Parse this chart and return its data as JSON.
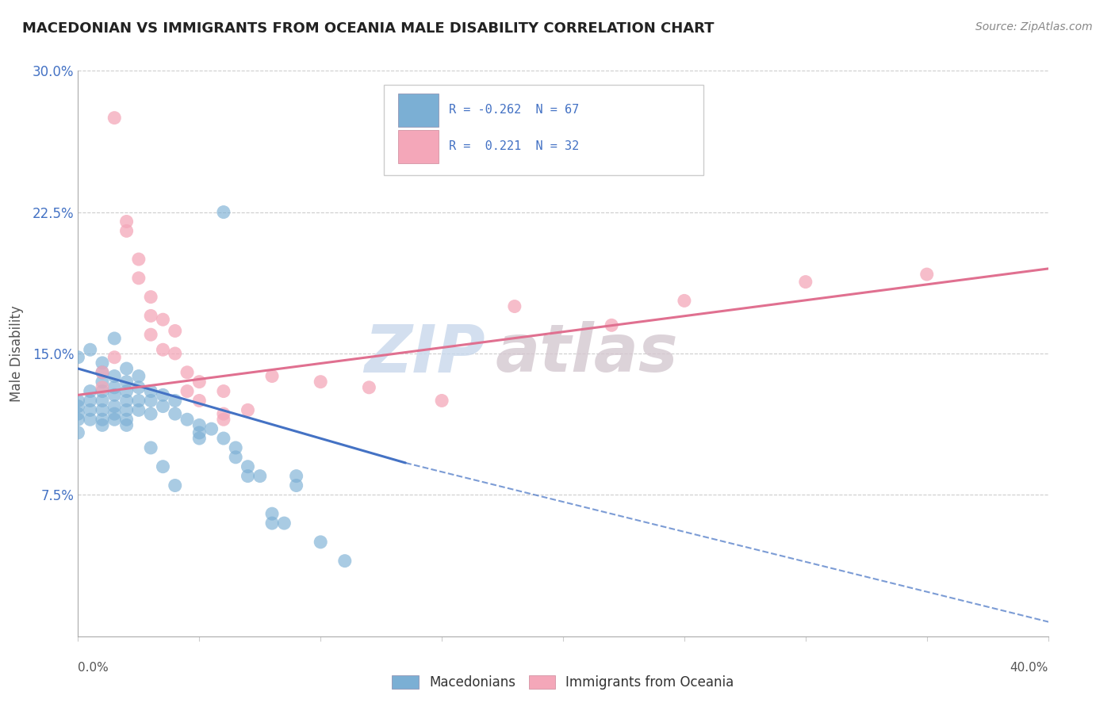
{
  "title": "MACEDONIAN VS IMMIGRANTS FROM OCEANIA MALE DISABILITY CORRELATION CHART",
  "source_text": "Source: ZipAtlas.com",
  "ylabel": "Male Disability",
  "xmin": 0.0,
  "xmax": 0.4,
  "ymin": 0.0,
  "ymax": 0.3,
  "yticks": [
    0.075,
    0.15,
    0.225,
    0.3
  ],
  "ytick_labels": [
    "7.5%",
    "15.0%",
    "22.5%",
    "30.0%"
  ],
  "legend_labels": [
    "Macedonians",
    "Immigrants from Oceania"
  ],
  "blue_color": "#7bafd4",
  "pink_color": "#f4a7b9",
  "blue_line_color": "#4472c4",
  "pink_line_color": "#e07090",
  "watermark_zip": "ZIP",
  "watermark_atlas": "atlas",
  "blue_scatter": [
    [
      0.0,
      0.125
    ],
    [
      0.0,
      0.122
    ],
    [
      0.0,
      0.118
    ],
    [
      0.0,
      0.115
    ],
    [
      0.005,
      0.13
    ],
    [
      0.005,
      0.125
    ],
    [
      0.005,
      0.12
    ],
    [
      0.005,
      0.115
    ],
    [
      0.01,
      0.14
    ],
    [
      0.01,
      0.135
    ],
    [
      0.01,
      0.13
    ],
    [
      0.01,
      0.125
    ],
    [
      0.01,
      0.12
    ],
    [
      0.01,
      0.115
    ],
    [
      0.01,
      0.112
    ],
    [
      0.015,
      0.138
    ],
    [
      0.015,
      0.132
    ],
    [
      0.015,
      0.128
    ],
    [
      0.015,
      0.122
    ],
    [
      0.015,
      0.118
    ],
    [
      0.015,
      0.115
    ],
    [
      0.02,
      0.135
    ],
    [
      0.02,
      0.13
    ],
    [
      0.02,
      0.125
    ],
    [
      0.02,
      0.12
    ],
    [
      0.02,
      0.115
    ],
    [
      0.02,
      0.112
    ],
    [
      0.025,
      0.132
    ],
    [
      0.025,
      0.125
    ],
    [
      0.025,
      0.12
    ],
    [
      0.03,
      0.13
    ],
    [
      0.03,
      0.125
    ],
    [
      0.03,
      0.118
    ],
    [
      0.035,
      0.128
    ],
    [
      0.035,
      0.122
    ],
    [
      0.04,
      0.125
    ],
    [
      0.04,
      0.118
    ],
    [
      0.045,
      0.115
    ],
    [
      0.05,
      0.112
    ],
    [
      0.05,
      0.108
    ],
    [
      0.055,
      0.11
    ],
    [
      0.06,
      0.225
    ],
    [
      0.0,
      0.148
    ],
    [
      0.0,
      0.108
    ],
    [
      0.005,
      0.152
    ],
    [
      0.01,
      0.145
    ],
    [
      0.015,
      0.158
    ],
    [
      0.02,
      0.142
    ],
    [
      0.025,
      0.138
    ],
    [
      0.03,
      0.1
    ],
    [
      0.035,
      0.09
    ],
    [
      0.04,
      0.08
    ],
    [
      0.05,
      0.105
    ],
    [
      0.06,
      0.105
    ],
    [
      0.065,
      0.1
    ],
    [
      0.065,
      0.095
    ],
    [
      0.07,
      0.09
    ],
    [
      0.07,
      0.085
    ],
    [
      0.075,
      0.085
    ],
    [
      0.08,
      0.065
    ],
    [
      0.08,
      0.06
    ],
    [
      0.085,
      0.06
    ],
    [
      0.09,
      0.085
    ],
    [
      0.09,
      0.08
    ],
    [
      0.1,
      0.05
    ],
    [
      0.11,
      0.04
    ]
  ],
  "pink_scatter": [
    [
      0.01,
      0.14
    ],
    [
      0.01,
      0.132
    ],
    [
      0.015,
      0.275
    ],
    [
      0.02,
      0.22
    ],
    [
      0.02,
      0.215
    ],
    [
      0.025,
      0.2
    ],
    [
      0.025,
      0.19
    ],
    [
      0.03,
      0.18
    ],
    [
      0.03,
      0.17
    ],
    [
      0.03,
      0.16
    ],
    [
      0.035,
      0.168
    ],
    [
      0.035,
      0.152
    ],
    [
      0.04,
      0.162
    ],
    [
      0.04,
      0.15
    ],
    [
      0.045,
      0.14
    ],
    [
      0.045,
      0.13
    ],
    [
      0.05,
      0.135
    ],
    [
      0.05,
      0.125
    ],
    [
      0.06,
      0.13
    ],
    [
      0.06,
      0.118
    ],
    [
      0.07,
      0.12
    ],
    [
      0.08,
      0.138
    ],
    [
      0.1,
      0.135
    ],
    [
      0.12,
      0.132
    ],
    [
      0.15,
      0.125
    ],
    [
      0.18,
      0.175
    ],
    [
      0.22,
      0.165
    ],
    [
      0.25,
      0.178
    ],
    [
      0.3,
      0.188
    ],
    [
      0.35,
      0.192
    ],
    [
      0.015,
      0.148
    ],
    [
      0.06,
      0.115
    ]
  ],
  "blue_trendline_solid": [
    [
      0.0,
      0.142
    ],
    [
      0.135,
      0.092
    ]
  ],
  "blue_trendline_dashed": [
    [
      0.135,
      0.092
    ],
    [
      0.55,
      -0.04
    ]
  ],
  "pink_trendline": [
    [
      0.0,
      0.128
    ],
    [
      0.4,
      0.195
    ]
  ]
}
